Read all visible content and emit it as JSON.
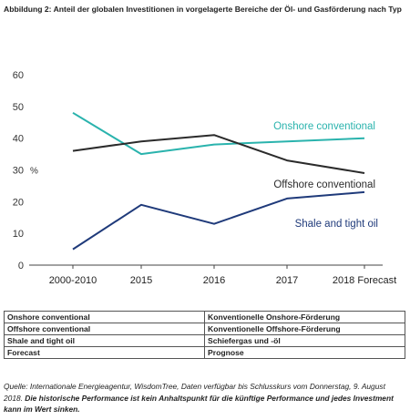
{
  "header": {
    "title": "Abbildung 2: Anteil der globalen Investitionen in vorgelagerte Bereiche der Öl- und Gasförderung nach Typ"
  },
  "chart_data": {
    "type": "line",
    "categories": [
      "2000-2010",
      "2015",
      "2016",
      "2017",
      "2018 Forecast"
    ],
    "series": [
      {
        "name": "Onshore conventional",
        "values": [
          48,
          35,
          38,
          39,
          40
        ],
        "color": "#2ab3ad"
      },
      {
        "name": "Offshore conventional",
        "values": [
          36,
          39,
          41,
          33,
          29
        ],
        "color": "#2b2b2b"
      },
      {
        "name": "Shale and tight oil",
        "values": [
          5,
          19,
          13,
          21,
          23
        ],
        "color": "#1f3a7a"
      }
    ],
    "ylabel": "%",
    "ylim": [
      0,
      60
    ],
    "yticks": [
      0,
      10,
      20,
      30,
      40,
      50,
      60
    ],
    "grid": false,
    "legend": "inline labels"
  },
  "legend_table": {
    "rows": [
      {
        "en": "Onshore conventional",
        "de": "Konventionelle Onshore-Förderung"
      },
      {
        "en": "Offshore conventional",
        "de": "Konventionelle Offshore-Förderung"
      },
      {
        "en": "Shale and tight oil",
        "de": "Schiefergas und -öl"
      },
      {
        "en": "Forecast",
        "de": "Prognose"
      }
    ]
  },
  "source": {
    "text": "Quelle: Internationale Energieagentur, WisdomTree, Daten verfügbar bis Schlusskurs vom Donnerstag, 9. August 2018.",
    "disclaimer": "Die historische Performance ist kein Anhaltspunkt für die künftige Performance und jedes Investment kann im Wert sinken."
  }
}
